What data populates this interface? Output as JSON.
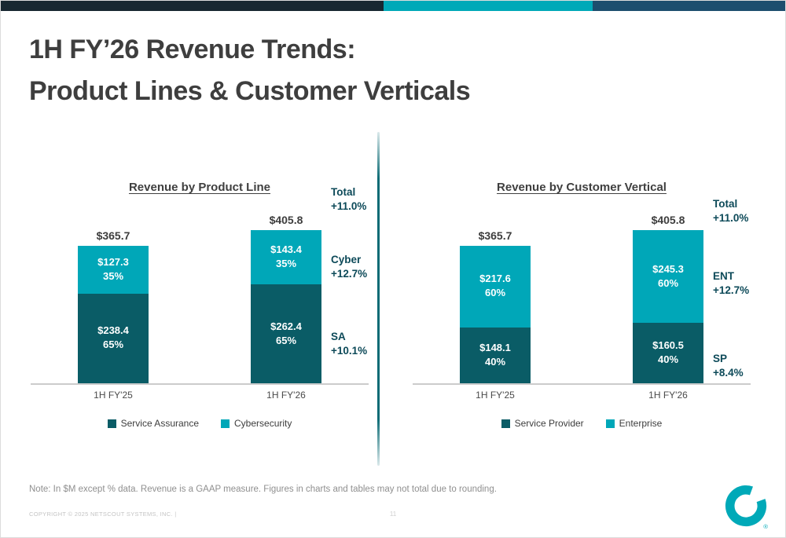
{
  "title": {
    "line1": "1H FY’26 Revenue Trends:",
    "line2": "Product Lines & Customer Verticals"
  },
  "note": "Note: In $M except % data. Revenue is a GAAP measure. Figures in charts and tables may not total due to rounding.",
  "footer": {
    "copyright": "COPYRIGHT © 2025 NETSCOUT SYSTEMS, INC.  |",
    "page_number": "11"
  },
  "colors": {
    "brand_teal": "#00a9b8",
    "dark_teal": "#0a5c66",
    "light_teal": "#00a7b8",
    "topbar_left": "#182831",
    "topbar_right": "#1d4e6e",
    "growth_text": "#0d4a59"
  },
  "chart_data": [
    {
      "type": "bar",
      "stacked": true,
      "title": "Revenue by Product Line",
      "units": "$M",
      "categories": [
        "1H FY'25",
        "1H FY'26"
      ],
      "totals": [
        365.7,
        405.8
      ],
      "total_labels": [
        "$365.7",
        "$405.8"
      ],
      "series": [
        {
          "name": "Service Assurance",
          "color": "#0a5c66",
          "values": [
            238.4,
            262.4
          ],
          "value_labels": [
            "$238.4",
            "$262.4"
          ],
          "pct_labels": [
            "65%",
            "65%"
          ]
        },
        {
          "name": "Cybersecurity",
          "color": "#00a7b8",
          "values": [
            127.3,
            143.4
          ],
          "value_labels": [
            "$127.3",
            "$143.4"
          ],
          "pct_labels": [
            "35%",
            "35%"
          ]
        }
      ],
      "growth": [
        {
          "label": "Total",
          "value": "+11.0%"
        },
        {
          "label": "Cyber",
          "value": "+12.7%"
        },
        {
          "label": "SA",
          "value": "+10.1%"
        }
      ],
      "legend": [
        "Service Assurance",
        "Cybersecurity"
      ]
    },
    {
      "type": "bar",
      "stacked": true,
      "title": "Revenue by Customer Vertical",
      "units": "$M",
      "categories": [
        "1H FY'25",
        "1H FY'26"
      ],
      "totals": [
        365.7,
        405.8
      ],
      "total_labels": [
        "$365.7",
        "$405.8"
      ],
      "series": [
        {
          "name": "Service Provider",
          "color": "#0a5c66",
          "values": [
            148.1,
            160.5
          ],
          "value_labels": [
            "$148.1",
            "$160.5"
          ],
          "pct_labels": [
            "40%",
            "40%"
          ]
        },
        {
          "name": "Enterprise",
          "color": "#00a7b8",
          "values": [
            217.6,
            245.3
          ],
          "value_labels": [
            "$217.6",
            "$245.3"
          ],
          "pct_labels": [
            "60%",
            "60%"
          ]
        }
      ],
      "growth": [
        {
          "label": "Total",
          "value": "+11.0%"
        },
        {
          "label": "ENT",
          "value": "+12.7%"
        },
        {
          "label": "SP",
          "value": "+8.4%"
        }
      ],
      "legend": [
        "Service Provider",
        "Enterprise"
      ]
    }
  ]
}
